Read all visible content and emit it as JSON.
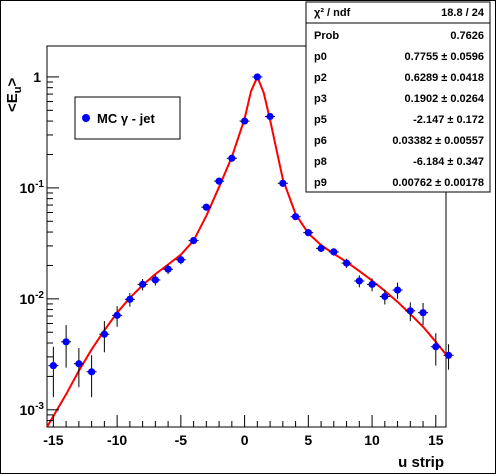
{
  "chart_data": {
    "type": "scatter",
    "title": "",
    "xlabel": "u strip",
    "ylabel": "<E",
    "ylabel_sub": "u",
    "ylabel_end": ">",
    "xlim": [
      -15.5,
      15.8
    ],
    "ylim": [
      0.0007,
      1.9
    ],
    "yscale": "log",
    "x_ticks": [
      -15,
      -10,
      -5,
      0,
      5,
      10,
      15
    ],
    "y_ticks": [
      {
        "value": 0.001,
        "base": "10",
        "exp": "-3"
      },
      {
        "value": 0.01,
        "base": "10",
        "exp": "-2"
      },
      {
        "value": 0.1,
        "base": "10",
        "exp": "-1"
      },
      {
        "value": 1,
        "base": "1",
        "exp": ""
      }
    ],
    "grid": false,
    "legend": {
      "position": "upper-left",
      "entries": [
        {
          "label": "MC γ - jet",
          "color": "#0000ff"
        }
      ]
    },
    "series": [
      {
        "name": "MC γ - jet",
        "color": "#0000ff",
        "points": [
          {
            "x": -15,
            "y": 0.0025,
            "yerr": 0.0012
          },
          {
            "x": -14,
            "y": 0.0041,
            "yerr": 0.0017
          },
          {
            "x": -13,
            "y": 0.0026,
            "yerr": 0.001
          },
          {
            "x": -12,
            "y": 0.0022,
            "yerr": 0.0009
          },
          {
            "x": -11,
            "y": 0.0048,
            "yerr": 0.0015
          },
          {
            "x": -10,
            "y": 0.0071,
            "yerr": 0.0015
          },
          {
            "x": -9,
            "y": 0.0099,
            "yerr": 0.0014
          },
          {
            "x": -8,
            "y": 0.0135,
            "yerr": 0.0016
          },
          {
            "x": -7,
            "y": 0.0148,
            "yerr": 0.0016
          },
          {
            "x": -6,
            "y": 0.0185,
            "yerr": 0.0018
          },
          {
            "x": -5,
            "y": 0.0225,
            "yerr": 0.002
          },
          {
            "x": -4,
            "y": 0.0335,
            "yerr": 0.0022
          },
          {
            "x": -3,
            "y": 0.067,
            "yerr": 0.003
          },
          {
            "x": -2,
            "y": 0.115,
            "yerr": 0.004
          },
          {
            "x": -1,
            "y": 0.185,
            "yerr": 0.005
          },
          {
            "x": 0,
            "y": 0.4,
            "yerr": 0.008
          },
          {
            "x": 1,
            "y": 1.0,
            "yerr": 0.01
          },
          {
            "x": 2,
            "y": 0.44,
            "yerr": 0.008
          },
          {
            "x": 3,
            "y": 0.11,
            "yerr": 0.004
          },
          {
            "x": 4,
            "y": 0.055,
            "yerr": 0.003
          },
          {
            "x": 5,
            "y": 0.0395,
            "yerr": 0.0025
          },
          {
            "x": 6,
            "y": 0.0285,
            "yerr": 0.002
          },
          {
            "x": 7,
            "y": 0.0265,
            "yerr": 0.002
          },
          {
            "x": 8,
            "y": 0.021,
            "yerr": 0.002
          },
          {
            "x": 9,
            "y": 0.0145,
            "yerr": 0.0018
          },
          {
            "x": 10,
            "y": 0.0135,
            "yerr": 0.0018
          },
          {
            "x": 11,
            "y": 0.0105,
            "yerr": 0.0016
          },
          {
            "x": 12,
            "y": 0.012,
            "yerr": 0.002
          },
          {
            "x": 13,
            "y": 0.0078,
            "yerr": 0.0015
          },
          {
            "x": 14,
            "y": 0.0075,
            "yerr": 0.0017
          },
          {
            "x": 15,
            "y": 0.0037,
            "yerr": 0.0012
          },
          {
            "x": 16,
            "y": 0.0031,
            "yerr": 0.0008
          }
        ]
      },
      {
        "name": "",
        "type": "line",
        "color": "#ff0000",
        "points": [
          [
            -15.5,
            0.00068
          ],
          [
            -14,
            0.00138
          ],
          [
            -13,
            0.00225
          ],
          [
            -12,
            0.0035
          ],
          [
            -11,
            0.0052
          ],
          [
            -10,
            0.0075
          ],
          [
            -9,
            0.0102
          ],
          [
            -8,
            0.0133
          ],
          [
            -7,
            0.0167
          ],
          [
            -6,
            0.0204
          ],
          [
            -5,
            0.025
          ],
          [
            -4,
            0.0335
          ],
          [
            -3,
            0.056
          ],
          [
            -2,
            0.102
          ],
          [
            -1,
            0.19
          ],
          [
            0,
            0.42
          ],
          [
            0.5,
            0.74
          ],
          [
            1,
            1.0
          ],
          [
            1.5,
            0.72
          ],
          [
            2,
            0.41
          ],
          [
            3,
            0.12
          ],
          [
            4,
            0.058
          ],
          [
            5,
            0.039
          ],
          [
            6,
            0.0305
          ],
          [
            7,
            0.0255
          ],
          [
            8,
            0.0215
          ],
          [
            9,
            0.0178
          ],
          [
            10,
            0.0146
          ],
          [
            11,
            0.0118
          ],
          [
            12,
            0.0094
          ],
          [
            13,
            0.0073
          ],
          [
            14,
            0.0056
          ],
          [
            15,
            0.0041
          ],
          [
            15.8,
            0.00315
          ]
        ]
      }
    ]
  },
  "stats": {
    "rows": [
      {
        "label": "χ² / ndf",
        "value": "18.8 / 24"
      },
      {
        "label": "Prob",
        "value": "0.7626"
      },
      {
        "label": "p0",
        "value": "0.7755 ± 0.0596"
      },
      {
        "label": "p2",
        "value": "0.6289 ± 0.0418"
      },
      {
        "label": "p3",
        "value": "0.1902 ± 0.0264"
      },
      {
        "label": "p5",
        "value": "-2.147 ± 0.172"
      },
      {
        "label": "p6",
        "value": "0.03382 ± 0.00557"
      },
      {
        "label": "p8",
        "value": "-6.184 ± 0.347"
      },
      {
        "label": "p9",
        "value": "0.00762 ± 0.00178"
      }
    ]
  },
  "colors": {
    "canvas": "#ffffff",
    "frame": "#000000",
    "markers": "#0000ff",
    "fit": "#ff0000"
  }
}
